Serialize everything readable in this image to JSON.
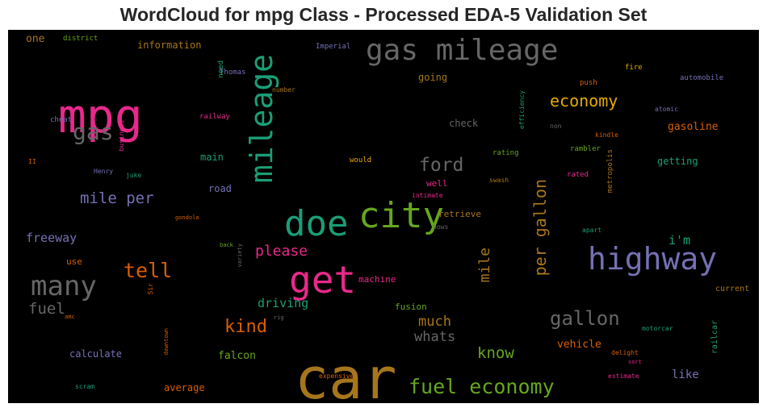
{
  "chart_data": {
    "type": "wordcloud",
    "title": "WordCloud for mpg Class - Processed EDA-5 Validation Set",
    "background": "#000000",
    "colormap": "Dark2",
    "words": [
      {
        "text": "car",
        "color": "#a6761d"
      },
      {
        "text": "mpg",
        "color": "#e7298a"
      },
      {
        "text": "gas mileage",
        "color": "#666666"
      },
      {
        "text": "mileage",
        "color": "#1b9e77"
      },
      {
        "text": "city",
        "color": "#66a61e"
      },
      {
        "text": "doe",
        "color": "#1b9e77"
      },
      {
        "text": "get",
        "color": "#e7298a"
      },
      {
        "text": "highway",
        "color": "#7570b3"
      },
      {
        "text": "many",
        "color": "#666666"
      },
      {
        "text": "gas",
        "color": "#666666"
      },
      {
        "text": "fuel economy",
        "color": "#66a61e"
      },
      {
        "text": "tell",
        "color": "#d95f02"
      },
      {
        "text": "per gallon",
        "color": "#a6761d"
      },
      {
        "text": "gallon",
        "color": "#666666"
      },
      {
        "text": "economy",
        "color": "#e6ab02"
      },
      {
        "text": "ford",
        "color": "#666666"
      },
      {
        "text": "mile per",
        "color": "#7570b3"
      },
      {
        "text": "kind",
        "color": "#d95f02"
      },
      {
        "text": "mile",
        "color": "#a6761d"
      },
      {
        "text": "know",
        "color": "#66a61e"
      },
      {
        "text": "fuel",
        "color": "#666666"
      },
      {
        "text": "much",
        "color": "#a6761d"
      },
      {
        "text": "whats",
        "color": "#666666"
      },
      {
        "text": "please",
        "color": "#e7298a"
      },
      {
        "text": "driving",
        "color": "#1b9e77"
      },
      {
        "text": "freeway",
        "color": "#7570b3"
      },
      {
        "text": "i'm",
        "color": "#1b9e77"
      },
      {
        "text": "gasoline",
        "color": "#d95f02"
      },
      {
        "text": "like",
        "color": "#7570b3"
      },
      {
        "text": "vehicle",
        "color": "#d95f02"
      },
      {
        "text": "falcon",
        "color": "#66a61e"
      },
      {
        "text": "calculate",
        "color": "#7570b3"
      },
      {
        "text": "average",
        "color": "#d95f02"
      },
      {
        "text": "road",
        "color": "#7570b3"
      },
      {
        "text": "main",
        "color": "#1b9e77"
      },
      {
        "text": "check",
        "color": "#666666"
      },
      {
        "text": "going",
        "color": "#a6761d"
      },
      {
        "text": "getting",
        "color": "#1b9e77"
      },
      {
        "text": "information",
        "color": "#a6761d"
      },
      {
        "text": "one",
        "color": "#a6761d"
      },
      {
        "text": "use",
        "color": "#d95f02"
      },
      {
        "text": "machine",
        "color": "#e7298a"
      },
      {
        "text": "fusion",
        "color": "#66a61e"
      },
      {
        "text": "retrieve",
        "color": "#a6761d"
      },
      {
        "text": "well",
        "color": "#e7298a"
      },
      {
        "text": "current",
        "color": "#a6761d"
      },
      {
        "text": "railcar",
        "color": "#1b9e77"
      },
      {
        "text": "district",
        "color": "#66a61e"
      },
      {
        "text": "Imperial",
        "color": "#7570b3"
      },
      {
        "text": "fire",
        "color": "#e6ab02"
      },
      {
        "text": "automobile",
        "color": "#7570b3"
      },
      {
        "text": "push",
        "color": "#d95f02"
      },
      {
        "text": "need",
        "color": "#1b9e77"
      },
      {
        "text": "Thomas",
        "color": "#7570b3"
      },
      {
        "text": "number",
        "color": "#a6761d"
      },
      {
        "text": "efficiency",
        "color": "#1b9e77"
      },
      {
        "text": "atomic",
        "color": "#7570b3"
      },
      {
        "text": "non",
        "color": "#666666"
      },
      {
        "text": "kindle",
        "color": "#d95f02"
      },
      {
        "text": "cheat",
        "color": "#7570b3"
      },
      {
        "text": "railway",
        "color": "#e7298a"
      },
      {
        "text": "business",
        "color": "#e7298a"
      },
      {
        "text": "rambler",
        "color": "#66a61e"
      },
      {
        "text": "rating",
        "color": "#66a61e"
      },
      {
        "text": "II",
        "color": "#d95f02"
      },
      {
        "text": "would",
        "color": "#e6ab02"
      },
      {
        "text": "metropolis",
        "color": "#a6761d"
      },
      {
        "text": "Henry",
        "color": "#7570b3"
      },
      {
        "text": "juke",
        "color": "#1b9e77"
      },
      {
        "text": "swash",
        "color": "#a6761d"
      },
      {
        "text": "rated",
        "color": "#e7298a"
      },
      {
        "text": "intimate",
        "color": "#e7298a"
      },
      {
        "text": "gondola",
        "color": "#d95f02"
      },
      {
        "text": "hows",
        "color": "#666666"
      },
      {
        "text": "apart",
        "color": "#1b9e77"
      },
      {
        "text": "back",
        "color": "#66a61e"
      },
      {
        "text": "variety",
        "color": "#666666"
      },
      {
        "text": "Sir",
        "color": "#d95f02"
      },
      {
        "text": "rig",
        "color": "#666666"
      },
      {
        "text": "amc",
        "color": "#d95f02"
      },
      {
        "text": "downtown",
        "color": "#d95f02"
      },
      {
        "text": "motorcar",
        "color": "#1b9e77"
      },
      {
        "text": "delight",
        "color": "#d95f02"
      },
      {
        "text": "sort",
        "color": "#e7298a"
      },
      {
        "text": "estimate",
        "color": "#e7298a"
      },
      {
        "text": "expensive",
        "color": "#d95f02"
      },
      {
        "text": "scram",
        "color": "#1b9e77"
      }
    ]
  }
}
